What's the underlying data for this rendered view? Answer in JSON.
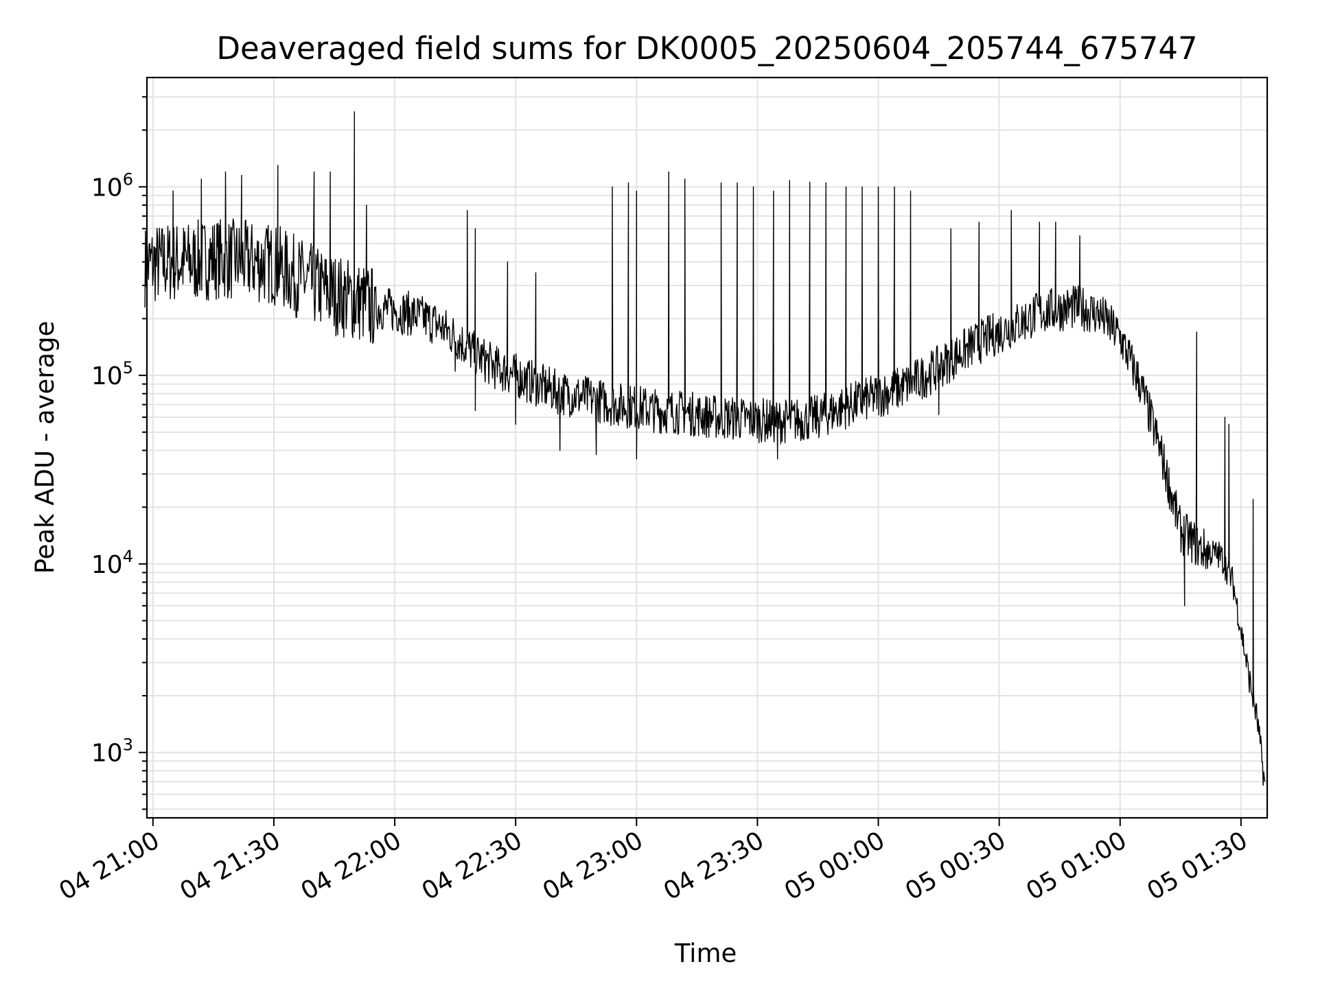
{
  "chart_data": {
    "type": "line",
    "title": "Deaveraged field sums for DK0005_20250604_205744_675747",
    "xlabel": "Time",
    "ylabel": "Peak ADU - average",
    "yscale": "log",
    "ylim": [
      450,
      3800000
    ],
    "xlim": [
      "2025-06-04 20:58:30",
      "2025-06-05 01:36:30"
    ],
    "grid": true,
    "line_color": "#000000",
    "x_ticks": [
      {
        "t": "2025-06-04 21:00",
        "label": "04 21:00"
      },
      {
        "t": "2025-06-04 21:30",
        "label": "04 21:30"
      },
      {
        "t": "2025-06-04 22:00",
        "label": "04 22:00"
      },
      {
        "t": "2025-06-04 22:30",
        "label": "04 22:30"
      },
      {
        "t": "2025-06-04 23:00",
        "label": "04 23:00"
      },
      {
        "t": "2025-06-04 23:30",
        "label": "04 23:30"
      },
      {
        "t": "2025-06-05 00:00",
        "label": "05 00:00"
      },
      {
        "t": "2025-06-05 00:30",
        "label": "05 00:30"
      },
      {
        "t": "2025-06-05 01:00",
        "label": "05 01:00"
      },
      {
        "t": "2025-06-05 01:30",
        "label": "05 01:30"
      }
    ],
    "y_ticks": [
      {
        "value": 1000,
        "base": "10",
        "exp": "3"
      },
      {
        "value": 10000,
        "base": "10",
        "exp": "4"
      },
      {
        "value": 100000,
        "base": "10",
        "exp": "5"
      },
      {
        "value": 1000000,
        "base": "10",
        "exp": "6"
      }
    ],
    "series": [
      {
        "x": [
          "2025-06-04 20:58",
          "2025-06-04 21:00",
          "2025-06-04 21:05",
          "2025-06-04 21:10",
          "2025-06-04 21:15",
          "2025-06-04 21:20",
          "2025-06-04 21:25",
          "2025-06-04 21:30",
          "2025-06-04 21:35",
          "2025-06-04 21:40",
          "2025-06-04 21:45",
          "2025-06-04 21:50",
          "2025-06-04 21:55",
          "2025-06-04 22:00",
          "2025-06-04 22:05",
          "2025-06-04 22:10",
          "2025-06-04 22:15",
          "2025-06-04 22:20",
          "2025-06-04 22:25",
          "2025-06-04 22:30",
          "2025-06-04 22:35",
          "2025-06-04 22:40",
          "2025-06-04 22:45",
          "2025-06-04 22:50",
          "2025-06-04 22:55",
          "2025-06-04 23:00",
          "2025-06-04 23:05",
          "2025-06-04 23:10",
          "2025-06-04 23:15",
          "2025-06-04 23:20",
          "2025-06-04 23:25",
          "2025-06-04 23:30",
          "2025-06-04 23:35",
          "2025-06-04 23:40",
          "2025-06-04 23:45",
          "2025-06-04 23:50",
          "2025-06-04 23:55",
          "2025-06-05 00:00",
          "2025-06-05 00:05",
          "2025-06-05 00:10",
          "2025-06-05 00:15",
          "2025-06-05 00:20",
          "2025-06-05 00:25",
          "2025-06-05 00:30",
          "2025-06-05 00:35",
          "2025-06-05 00:40",
          "2025-06-05 00:45",
          "2025-06-05 00:50",
          "2025-06-05 00:55",
          "2025-06-05 01:00",
          "2025-06-05 01:05",
          "2025-06-05 01:10",
          "2025-06-05 01:15",
          "2025-06-05 01:20",
          "2025-06-05 01:25",
          "2025-06-05 01:28",
          "2025-06-05 01:30",
          "2025-06-05 01:32",
          "2025-06-05 01:34",
          "2025-06-05 01:36"
        ],
        "y": [
          380000,
          390000,
          400000,
          400000,
          420000,
          410000,
          400000,
          390000,
          340000,
          300000,
          270000,
          250000,
          230000,
          220000,
          210000,
          190000,
          160000,
          130000,
          110000,
          100000,
          90000,
          82000,
          78000,
          74000,
          70000,
          68000,
          65000,
          64000,
          62000,
          60000,
          59000,
          58000,
          57000,
          58000,
          60000,
          66000,
          72000,
          78000,
          85000,
          95000,
          110000,
          130000,
          150000,
          170000,
          190000,
          215000,
          225000,
          230000,
          210000,
          160000,
          90000,
          40000,
          15000,
          12000,
          11000,
          8000,
          4500,
          2500,
          1500,
          650
        ]
      }
    ],
    "spikes": [
      {
        "t": "2025-06-04 21:50",
        "y": 2500000
      },
      {
        "t": "2025-06-04 21:31",
        "y": 1300000
      },
      {
        "t": "2025-06-04 21:40",
        "y": 1200000
      },
      {
        "t": "2025-06-04 21:44",
        "y": 1200000
      },
      {
        "t": "2025-06-04 21:18",
        "y": 1200000
      },
      {
        "t": "2025-06-04 21:22",
        "y": 1150000
      },
      {
        "t": "2025-06-04 21:12",
        "y": 1100000
      },
      {
        "t": "2025-06-04 21:05",
        "y": 950000
      },
      {
        "t": "2025-06-04 21:53",
        "y": 800000
      },
      {
        "t": "2025-06-04 22:18",
        "y": 750000
      },
      {
        "t": "2025-06-04 22:20",
        "y": 600000
      },
      {
        "t": "2025-06-04 22:28",
        "y": 400000
      },
      {
        "t": "2025-06-04 22:35",
        "y": 350000
      },
      {
        "t": "2025-06-04 22:54",
        "y": 1000000
      },
      {
        "t": "2025-06-04 22:58",
        "y": 1050000
      },
      {
        "t": "2025-06-04 23:00",
        "y": 950000
      },
      {
        "t": "2025-06-04 23:08",
        "y": 1200000
      },
      {
        "t": "2025-06-04 23:12",
        "y": 1100000
      },
      {
        "t": "2025-06-04 23:21",
        "y": 1050000
      },
      {
        "t": "2025-06-04 23:25",
        "y": 1050000
      },
      {
        "t": "2025-06-04 23:29",
        "y": 1000000
      },
      {
        "t": "2025-06-04 23:34",
        "y": 950000
      },
      {
        "t": "2025-06-04 23:38",
        "y": 1080000
      },
      {
        "t": "2025-06-04 23:43",
        "y": 1060000
      },
      {
        "t": "2025-06-04 23:47",
        "y": 1050000
      },
      {
        "t": "2025-06-04 23:52",
        "y": 1000000
      },
      {
        "t": "2025-06-04 23:56",
        "y": 1000000
      },
      {
        "t": "2025-06-05 00:00",
        "y": 1000000
      },
      {
        "t": "2025-06-05 00:04",
        "y": 1000000
      },
      {
        "t": "2025-06-05 00:08",
        "y": 950000
      },
      {
        "t": "2025-06-05 00:18",
        "y": 600000
      },
      {
        "t": "2025-06-05 00:25",
        "y": 650000
      },
      {
        "t": "2025-06-05 00:33",
        "y": 750000
      },
      {
        "t": "2025-06-05 00:40",
        "y": 650000
      },
      {
        "t": "2025-06-05 00:44",
        "y": 650000
      },
      {
        "t": "2025-06-05 00:50",
        "y": 550000
      },
      {
        "t": "2025-06-05 01:19",
        "y": 170000
      },
      {
        "t": "2025-06-05 01:26",
        "y": 60000
      },
      {
        "t": "2025-06-05 01:27",
        "y": 55000
      },
      {
        "t": "2025-06-05 01:33",
        "y": 22000
      }
    ],
    "dips": [
      {
        "t": "2025-06-04 21:50",
        "y": 170000
      },
      {
        "t": "2025-06-04 21:54",
        "y": 150000
      },
      {
        "t": "2025-06-04 22:15",
        "y": 105000
      },
      {
        "t": "2025-06-04 22:20",
        "y": 65000
      },
      {
        "t": "2025-06-04 22:30",
        "y": 55000
      },
      {
        "t": "2025-06-04 22:41",
        "y": 40000
      },
      {
        "t": "2025-06-04 22:50",
        "y": 38000
      },
      {
        "t": "2025-06-04 23:00",
        "y": 36000
      },
      {
        "t": "2025-06-04 23:35",
        "y": 36000
      },
      {
        "t": "2025-06-05 00:15",
        "y": 62000
      },
      {
        "t": "2025-06-05 01:16",
        "y": 6000
      }
    ]
  }
}
